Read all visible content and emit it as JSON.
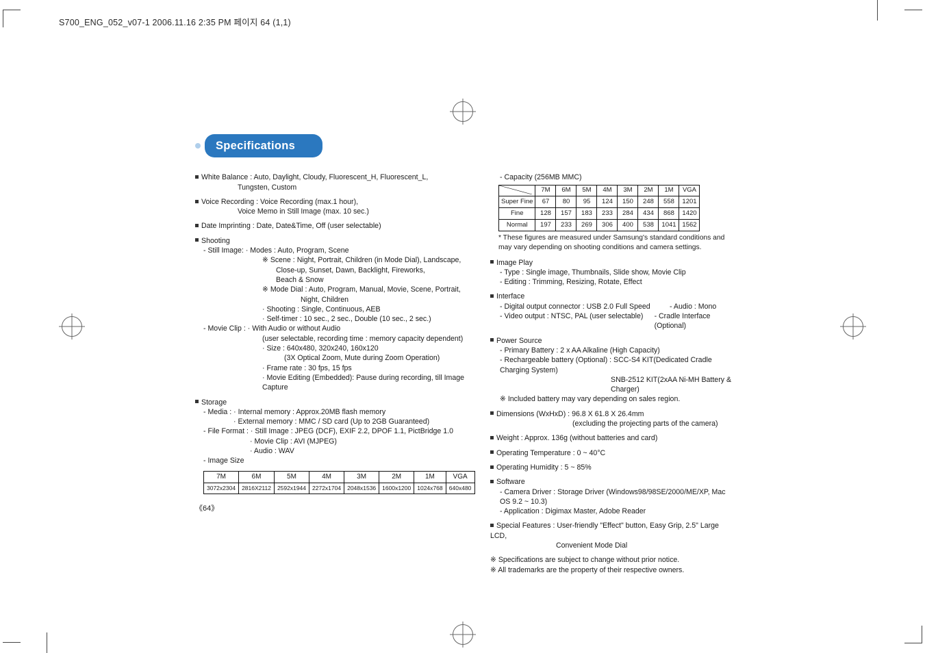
{
  "file_tag": "S700_ENG_052_v07-1  2006.11.16 2:35 PM  페이지 64 (1,1)",
  "title": "Specifications",
  "left": {
    "wb": "White Balance : Auto, Daylight, Cloudy, Fluorescent_H, Fluorescent_L,",
    "wb2": "Tungsten, Custom",
    "vr": "Voice Recording : Voice Recording (max.1 hour),",
    "vr2": "Voice Memo in Still Image (max. 10 sec.)",
    "di": "Date Imprinting : Date, Date&Time, Off (user selectable)",
    "shooting": "Shooting",
    "si1": "- Still Image:  · Modes : Auto, Program, Scene",
    "si2": "※ Scene : Night, Portrait, Children (in Mode Dial), Landscape,",
    "si3": "Close-up, Sunset, Dawn, Backlight, Fireworks,",
    "si4": "Beach & Snow",
    "si5": "※ Mode Dial : Auto, Program, Manual, Movie, Scene, Portrait,",
    "si6": "Night, Children",
    "si7": "· Shooting : Single, Continuous, AEB",
    "si8": "· Self-timer : 10 sec., 2 sec., Double (10 sec., 2 sec.)",
    "mc1": "- Movie Clip :  · With Audio or without Audio",
    "mc2": "(user selectable, recording time : memory capacity dependent)",
    "mc3": "· Size : 640x480, 320x240, 160x120",
    "mc4": "(3X Optical Zoom, Mute during Zoom Operation)",
    "mc5": "· Frame rate : 30 fps, 15 fps",
    "mc6": "· Movie Editing (Embedded): Pause during recording, till Image Capture",
    "storage": "Storage",
    "st1": "- Media : · Internal memory : Approx.20MB flash memory",
    "st2": "· External memory : MMC / SD card (Up to 2GB Guaranteed)",
    "st3": "- File Format : · Still Image : JPEG (DCF), EXIF 2.2, DPOF 1.1, PictBridge 1.0",
    "st4": "· Movie Clip : AVI (MJPEG)",
    "st5": "· Audio : WAV",
    "st6": "- Image Size",
    "size_table": {
      "headers": [
        "7M",
        "6M",
        "5M",
        "4M",
        "3M",
        "2M",
        "1M",
        "VGA"
      ],
      "row": [
        "3072x2304",
        "2816X2112",
        "2592x1944",
        "2272x1704",
        "2048x1536",
        "1600x1200",
        "1024x768",
        "640x480"
      ]
    }
  },
  "right": {
    "cap": "- Capacity (256MB MMC)",
    "cap_table": {
      "cols": [
        "",
        "7M",
        "6M",
        "5M",
        "4M",
        "3M",
        "2M",
        "1M",
        "VGA"
      ],
      "rows": [
        [
          "Super Fine",
          "67",
          "80",
          "95",
          "124",
          "150",
          "248",
          "558",
          "1201"
        ],
        [
          "Fine",
          "128",
          "157",
          "183",
          "233",
          "284",
          "434",
          "868",
          "1420"
        ],
        [
          "Normal",
          "197",
          "233",
          "269",
          "306",
          "400",
          "538",
          "1041",
          "1562"
        ]
      ]
    },
    "note": "* These figures are measured under Samsung's standard conditions and may vary depending on shooting conditions and camera settings.",
    "ip": "Image Play",
    "ip1": "- Type    : Single image, Thumbnails, Slide show, Movie Clip",
    "ip2": "- Editing : Trimming, Resizing, Rotate, Effect",
    "if": "Interface",
    "if1a": "- Digital output connector : USB 2.0 Full Speed",
    "if1b": "- Audio : Mono",
    "if2a": "- Video output : NTSC, PAL (user selectable)",
    "if2b": "- Cradle Interface (Optional)",
    "ps": "Power Source",
    "ps1": "- Primary Battery : 2 x AA Alkaline (High Capacity)",
    "ps2": "- Rechargeable battery (Optional) :  SCC-S4 KIT(Dedicated Cradle Charging System)",
    "ps3": "SNB-2512 KIT(2xAA Ni-MH Battery & Charger)",
    "ps4": "※ Included battery may vary depending on sales region.",
    "dim": "Dimensions (WxHxD) : 96.8 X 61.8 X 26.4mm",
    "dim2": "(excluding the projecting parts of the camera)",
    "wt": "Weight : Approx. 136g (without batteries and card)",
    "ot": "Operating Temperature : 0 ~ 40°C",
    "oh": "Operating Humidity : 5 ~ 85%",
    "sw": "Software",
    "sw1": "- Camera Driver : Storage Driver (Windows98/98SE/2000/ME/XP, Mac OS 9.2 ~ 10.3)",
    "sw2": "- Application : Digimax Master, Adobe Reader",
    "sf": "Special Features : User-friendly \"Effect\" button, Easy Grip, 2.5\" Large LCD,",
    "sf2": "Convenient Mode Dial",
    "n1": "※ Specifications are subject to change without prior notice.",
    "n2": "※ All trademarks are the property of their respective owners."
  },
  "page_num": "《64》"
}
